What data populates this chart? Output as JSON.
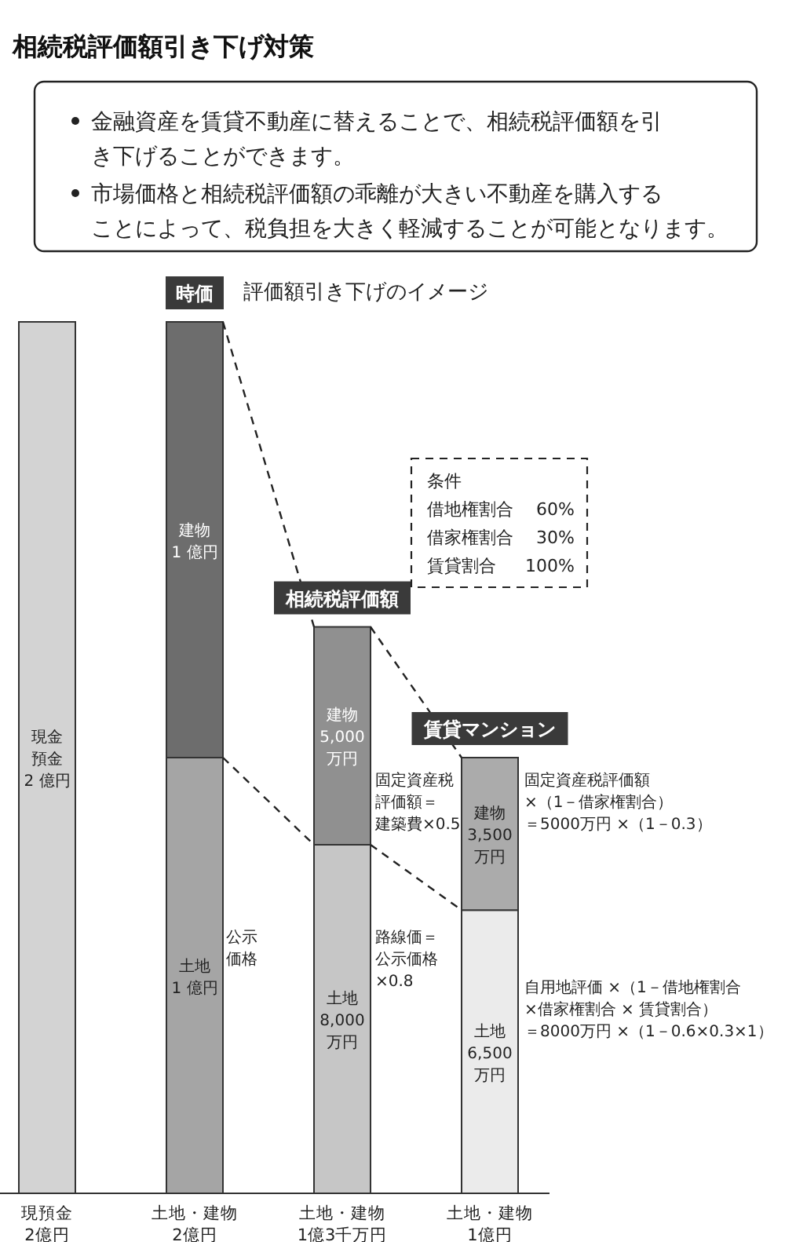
{
  "chart_data": {
    "type": "bar",
    "title": "相続税評価額引き下げ対策",
    "subtitle": "評価額引き下げのイメージ",
    "categories": [
      "現預金\n2億円",
      "土地・建物\n2億円",
      "土地・建物\n1億3千万円",
      "土地・建物\n1億円"
    ],
    "stacked": true,
    "ylim": [
      0,
      20000
    ],
    "tick_labels": "x",
    "series": [
      {
        "colors": [
          "#d3d3d3",
          "#a5a5a5",
          "#c6c6c6",
          "#ebebeb"
        ],
        "values": [
          20000,
          10000,
          8000,
          6500
        ],
        "value_labels": [
          "現金預金2 億円",
          "土地1 億円",
          "土地8,000万円",
          "土地6,500万円"
        ]
      },
      {
        "colors": [
          null,
          "#6d6d6d",
          "#909090",
          "#ababab"
        ],
        "values": [
          null,
          10000,
          5000,
          3500
        ],
        "value_labels": [
          null,
          "建物1 億円",
          "建物5,000万円",
          "建物3,500万円"
        ]
      }
    ],
    "annotations": [
      "金融資産を賃貸不動産に替えることで、相続税評価額を引き下げることができます。",
      "市場価格と相続税評価額の乖離が大きい不動産を購入することによって、税負担を大きく軽減することが可能となります。",
      "時価",
      "相続税評価額",
      "賃貸マンション",
      "条件",
      "借地権割合 60%",
      "借家権割合 30%",
      "賃貸割合 100%",
      "公示",
      "価格",
      "固定資産税",
      "評価額＝",
      "建築費×0.5",
      "路線価＝",
      "公示価格",
      "×0.8",
      "固定資産税評価額",
      "×（1－借家権割合）",
      "＝5000万円 ×（1－0.3）",
      "自用地評価 ×（1－借地権割合",
      "×借家権割合 × 賃貸割合）",
      "＝8000万円 ×（1－0.6×0.3×1）"
    ]
  }
}
